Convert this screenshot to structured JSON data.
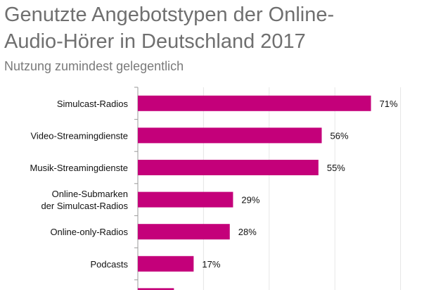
{
  "chart_data": {
    "type": "bar",
    "orientation": "horizontal",
    "title_lines": [
      "Genutzte Angebotstypen der Online-",
      "Audio-Hörer in Deutschland 2017"
    ],
    "subtitle": "Nutzung zumindest gelegentlich",
    "categories": [
      [
        "Simulcast-Radios"
      ],
      [
        "Video-Streamingdienste"
      ],
      [
        "Musik-Streamingdienste"
      ],
      [
        "Online-Submarken",
        "der Simulcast-Radios"
      ],
      [
        "Online-only-Radios"
      ],
      [
        "Podcasts"
      ],
      [
        ""
      ]
    ],
    "values": [
      71,
      56,
      55,
      29,
      28,
      17,
      11
    ],
    "data_labels": [
      "71%",
      "56%",
      "55%",
      "29%",
      "28%",
      "17%",
      ""
    ],
    "xlim": [
      0,
      100
    ],
    "grid": true,
    "bar_color": "#c4007a",
    "grid_color": "#e6e6e6"
  }
}
